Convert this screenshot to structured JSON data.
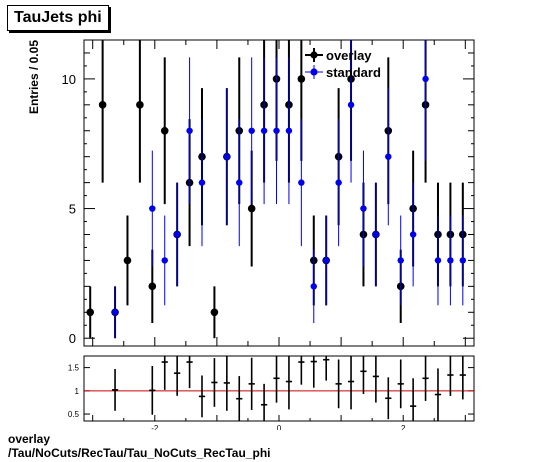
{
  "title": "TauJets phi",
  "footer": {
    "line1": "overlay",
    "line2": "/Tau/NoCuts/RecTau/Tau_NoCuts_RecTau_phi"
  },
  "colors": {
    "overlay": "#000000",
    "standard": "#0000ee",
    "ratio_line": "#cc0000"
  },
  "chart_data": [
    {
      "type": "scatter",
      "ylabel": "Entries / 0.05",
      "xlim": [
        -3.14,
        3.14
      ],
      "ylim": [
        -0.3,
        11.5
      ],
      "yticks": [
        0,
        5,
        10
      ],
      "legend": {
        "position": "top-right",
        "entries": [
          "overlay",
          "standard"
        ]
      },
      "series": [
        {
          "name": "overlay",
          "color": "#000000",
          "x": [
            -3.04,
            -2.84,
            -2.64,
            -2.44,
            -2.24,
            -2.04,
            -1.84,
            -1.64,
            -1.44,
            -1.24,
            -1.04,
            -0.84,
            -0.64,
            -0.44,
            -0.24,
            -0.04,
            0.16,
            0.36,
            0.56,
            0.76,
            0.96,
            1.16,
            1.36,
            1.56,
            1.76,
            1.96,
            2.16,
            2.36,
            2.56,
            2.76,
            2.96
          ],
          "y": [
            1,
            9,
            1,
            3,
            9,
            2,
            8,
            4,
            6,
            7,
            1,
            7,
            8,
            5,
            9,
            10,
            9,
            10,
            3,
            3,
            7,
            10,
            4,
            4,
            8,
            2,
            5,
            9,
            4,
            4,
            4
          ]
        },
        {
          "name": "standard",
          "color": "#0000ee",
          "x": [
            -2.64,
            -2.04,
            -1.84,
            -1.64,
            -1.44,
            -1.24,
            -0.84,
            -0.64,
            -0.44,
            -0.24,
            -0.04,
            0.16,
            0.36,
            0.56,
            0.76,
            0.96,
            1.16,
            1.36,
            1.56,
            1.76,
            1.96,
            2.16,
            2.36,
            2.56,
            2.76,
            2.96
          ],
          "y": [
            1,
            5,
            3,
            4,
            8,
            6,
            7,
            6,
            8,
            8,
            8,
            8,
            6,
            2,
            3,
            6,
            9,
            5,
            4,
            7,
            3,
            4,
            10,
            3,
            3,
            3
          ]
        }
      ]
    },
    {
      "type": "scatter",
      "xlim": [
        -3.14,
        3.14
      ],
      "ylim": [
        0.35,
        1.75
      ],
      "xticks": [
        -2,
        0,
        2
      ],
      "yticks": [
        0.5,
        1,
        1.5
      ],
      "reference_line": 1,
      "series": [
        {
          "name": "ratio",
          "color": "#000000",
          "x": [
            -2.64,
            -2.04,
            -1.84,
            -1.64,
            -1.44,
            -1.24,
            -1.04,
            -0.84,
            -0.64,
            -0.44,
            -0.24,
            -0.04,
            0.16,
            0.36,
            0.56,
            0.76,
            0.96,
            1.16,
            1.36,
            1.56,
            1.76,
            1.96,
            2.16,
            2.36,
            2.56,
            2.76,
            2.96
          ],
          "y": [
            1.02,
            1.01,
            1.62,
            1.38,
            1.62,
            0.88,
            1.18,
            1.17,
            0.83,
            1.15,
            0.7,
            1.27,
            1.2,
            1.62,
            1.63,
            1.67,
            1.15,
            1.2,
            1.42,
            1.31,
            0.84,
            1.15,
            0.67,
            1.27,
            0.92,
            1.34,
            1.34
          ]
        }
      ]
    }
  ]
}
